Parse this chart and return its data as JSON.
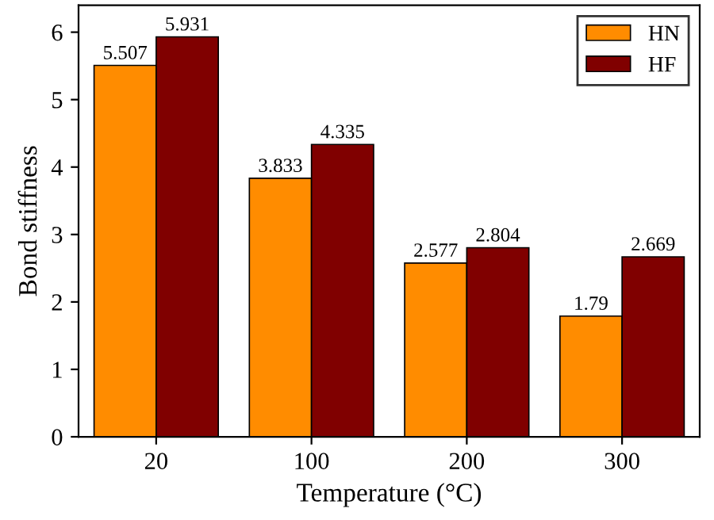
{
  "chart_data": {
    "type": "bar",
    "xlabel": "Temperature (°C)",
    "ylabel": "Bond stiffness",
    "categories": [
      "20",
      "100",
      "200",
      "300"
    ],
    "series": [
      {
        "name": "HN",
        "color": "#ff8c00",
        "values": [
          5.507,
          3.833,
          2.577,
          1.79
        ]
      },
      {
        "name": "HF",
        "color": "#800000",
        "values": [
          5.931,
          4.335,
          2.804,
          2.669
        ]
      }
    ],
    "ylim": [
      0,
      6.4
    ],
    "yticks": [
      0,
      1,
      2,
      3,
      4,
      5,
      6
    ],
    "data_labels": true,
    "legend": "top right",
    "grid": false
  }
}
